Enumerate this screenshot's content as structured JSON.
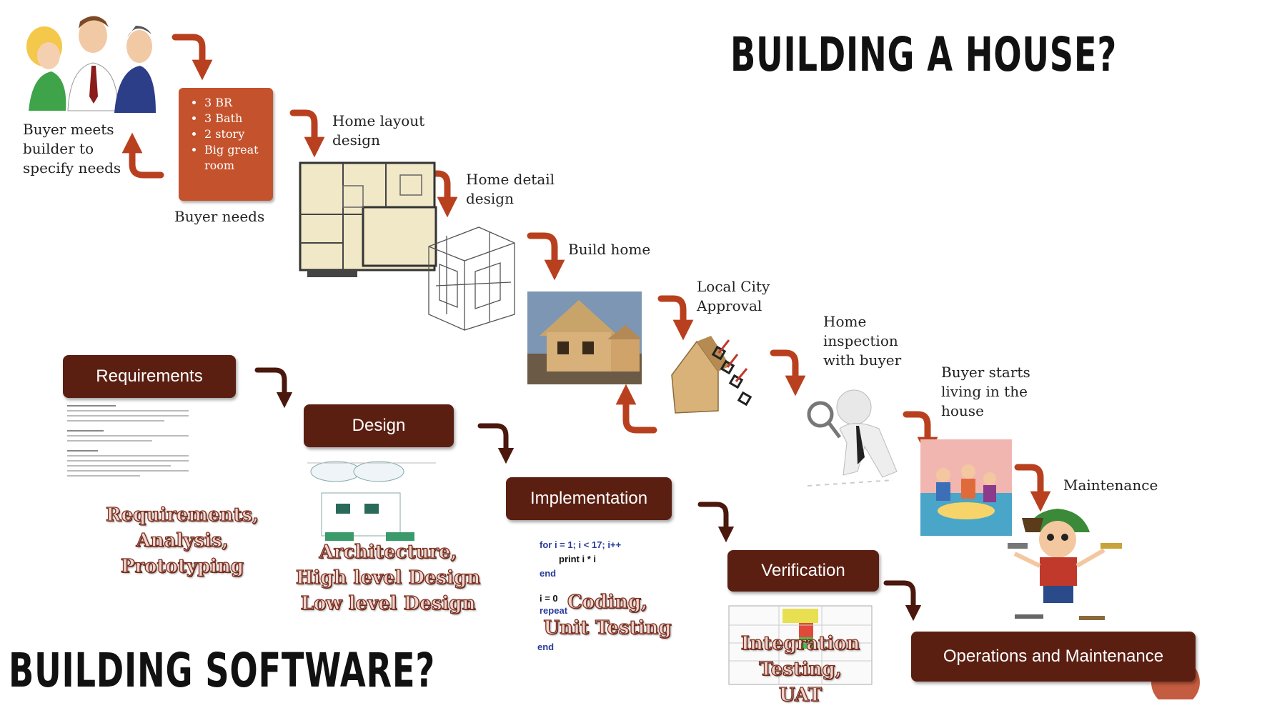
{
  "titles": {
    "house": "BUILDING A HOUSE?",
    "software": "BUILDING SOFTWARE?"
  },
  "house_steps": {
    "buyer_meets": "Buyer meets builder to specify needs",
    "buyer_needs_caption": "Buyer needs",
    "buyer_needs_list": [
      "3 BR",
      "3 Bath",
      "2 story",
      "Big great room"
    ],
    "home_layout": "Home layout design",
    "home_detail": "Home detail design",
    "build_home": "Build home",
    "local_city": "Local City Approval",
    "home_inspection": "Home inspection with buyer",
    "buyer_living": "Buyer starts living in the house",
    "maintenance": "Maintenance"
  },
  "software_phases": [
    {
      "label": "Requirements",
      "sub": [
        "Requirements,",
        "Analysis,",
        "Prototyping"
      ]
    },
    {
      "label": "Design",
      "sub": [
        "Architecture,",
        "High level Design",
        "Low level Design"
      ]
    },
    {
      "label": "Implementation",
      "sub": [
        "Coding,",
        "Unit Testing"
      ]
    },
    {
      "label": "Verification",
      "sub": [
        "Integration",
        "Testing,",
        "UAT"
      ]
    },
    {
      "label": "Operations and Maintenance"
    }
  ],
  "code_snippet": {
    "line1": "for i = 1; i < 17; i++",
    "line2": "print i * i",
    "line3": "end",
    "line4": "i = 0",
    "line5": "repeat",
    "line6": "end"
  },
  "colors": {
    "arrow": "#b8401f",
    "box": "#5b1f12",
    "scroll": "#c4522d"
  }
}
